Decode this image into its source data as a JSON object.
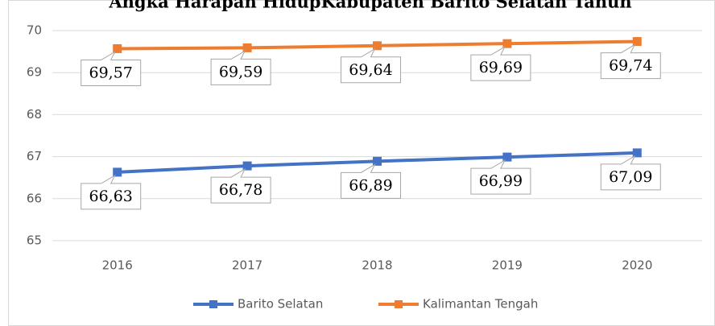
{
  "chart_data": {
    "type": "line",
    "title": "Angka Harapan HidupKabupaten Barito Selatan Tahun",
    "categories": [
      "2016",
      "2017",
      "2018",
      "2019",
      "2020"
    ],
    "series": [
      {
        "name": "Barito Selatan",
        "color": "#4472c4",
        "values": [
          66.63,
          66.78,
          66.89,
          66.99,
          67.09
        ],
        "value_labels": [
          "66,63",
          "66,78",
          "66,89",
          "66,99",
          "67,09"
        ]
      },
      {
        "name": "Kalimantan Tengah",
        "color": "#ed7d31",
        "values": [
          69.57,
          69.59,
          69.64,
          69.69,
          69.74
        ],
        "value_labels": [
          "69,57",
          "69,59",
          "69,64",
          "69,69",
          "69,74"
        ]
      }
    ],
    "ylim": [
      65,
      70
    ],
    "yticks": [
      65,
      66,
      67,
      68,
      69,
      70
    ],
    "grid": true,
    "legend": "bottom"
  }
}
